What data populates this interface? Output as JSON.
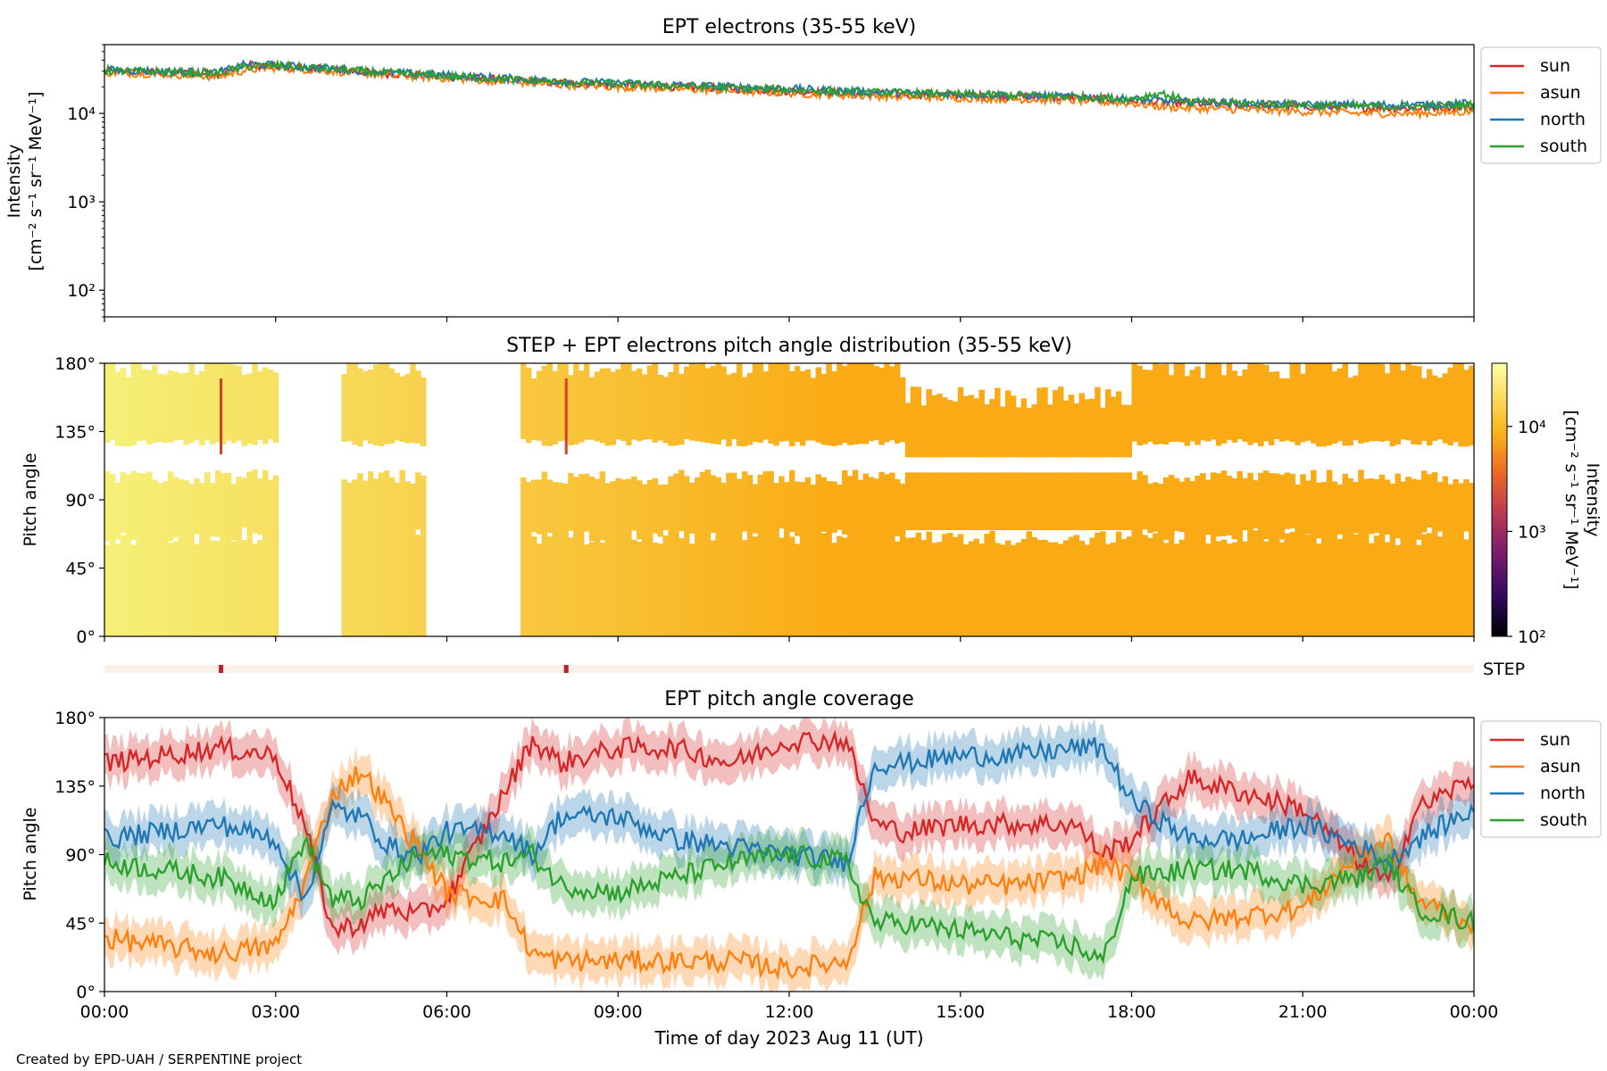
{
  "footer": "Created by EPD-UAH / SERPENTINE project",
  "colors": {
    "sun": "#d62728",
    "asun": "#ff7f0e",
    "north": "#1f77b4",
    "south": "#2ca02c"
  },
  "chart_data": [
    {
      "type": "line",
      "title": "EPT electrons (35-55 keV)",
      "ylabel_lines": [
        "Intensity",
        "[cm⁻² s⁻¹ sr⁻¹ MeV⁻¹]"
      ],
      "yscale": "log",
      "ylim": [
        50,
        60000
      ],
      "yticks": [
        {
          "value": 100,
          "label": "10²"
        },
        {
          "value": 1000,
          "label": "10³"
        },
        {
          "value": 10000,
          "label": "10⁴"
        }
      ],
      "x_hours": [
        0,
        1,
        2,
        2.5,
        3,
        4,
        5,
        6,
        7,
        8,
        9,
        10,
        11,
        12,
        13,
        14,
        15,
        16,
        17,
        18,
        18.5,
        19,
        20,
        21,
        22,
        23,
        24
      ],
      "series": [
        {
          "name": "sun",
          "values": [
            30000,
            29000,
            28000,
            35000,
            34000,
            31000,
            28000,
            26000,
            24000,
            22000,
            21000,
            20000,
            19000,
            18000,
            17000,
            16500,
            16000,
            15500,
            15000,
            14000,
            13500,
            13000,
            12500,
            12000,
            11500,
            11500,
            12000
          ]
        },
        {
          "name": "asun",
          "values": [
            29000,
            28000,
            26000,
            31000,
            33000,
            30000,
            27000,
            25000,
            23000,
            21000,
            20000,
            19000,
            18000,
            17000,
            16000,
            15500,
            15000,
            14500,
            14000,
            13000,
            12000,
            11500,
            11000,
            10500,
            10000,
            10000,
            10500
          ]
        },
        {
          "name": "north",
          "values": [
            31000,
            30000,
            29000,
            36000,
            35000,
            32000,
            29000,
            27000,
            25000,
            23000,
            22000,
            21000,
            20000,
            19000,
            18000,
            17000,
            16500,
            16000,
            15500,
            14500,
            14000,
            13500,
            13000,
            12500,
            12500,
            12500,
            13000
          ]
        },
        {
          "name": "south",
          "values": [
            30500,
            29500,
            28500,
            34000,
            35000,
            31500,
            28500,
            26500,
            24500,
            22500,
            21500,
            20500,
            19500,
            18500,
            17500,
            17000,
            16500,
            16000,
            15500,
            14500,
            17000,
            13500,
            13000,
            12500,
            12000,
            12000,
            12500
          ]
        }
      ],
      "legend": "outside-right"
    },
    {
      "type": "heatmap",
      "title": "STEP + EPT electrons pitch angle distribution (35-55 keV)",
      "ylabel": "Pitch angle",
      "ylim": [
        0,
        180
      ],
      "yticks": [
        "0°",
        "45°",
        "90°",
        "135°",
        "180°"
      ],
      "colorbar": {
        "label_lines": [
          "Intensity",
          "[cm⁻² s⁻¹ sr⁻¹ MeV⁻¹]"
        ],
        "scale": "log",
        "range": [
          100,
          40000
        ],
        "ticks": [
          {
            "value": 100,
            "label": "10²"
          },
          {
            "value": 1000,
            "label": "10³"
          },
          {
            "value": 10000,
            "label": "10⁴"
          }
        ]
      },
      "step_bar_label": "STEP",
      "step_marks_hours": [
        2.05,
        8.1
      ],
      "coverage_hours": [
        [
          0,
          3.0
        ],
        [
          4.2,
          5.6
        ],
        [
          7.3,
          24
        ]
      ]
    },
    {
      "type": "line",
      "title": "EPT pitch angle coverage",
      "ylabel": "Pitch angle",
      "ylim": [
        0,
        180
      ],
      "yticks": [
        "0°",
        "45°",
        "90°",
        "135°",
        "180°"
      ],
      "xlabel": "Time of day 2023 Aug 11 (UT)",
      "xticks": [
        "00:00",
        "03:00",
        "06:00",
        "09:00",
        "12:00",
        "15:00",
        "18:00",
        "21:00",
        "00:00"
      ],
      "x_hours": [
        0,
        1,
        2,
        3,
        3.5,
        4,
        4.5,
        5,
        5.5,
        6,
        7,
        7.5,
        8,
        9,
        10,
        11,
        12,
        13,
        13.5,
        14,
        15,
        16,
        17,
        17.5,
        18,
        19,
        20,
        21,
        22,
        22.5,
        23,
        24
      ],
      "series": [
        {
          "name": "sun",
          "values": [
            150,
            155,
            160,
            155,
            110,
            40,
            45,
            55,
            50,
            60,
            130,
            165,
            150,
            160,
            160,
            150,
            165,
            165,
            110,
            105,
            110,
            110,
            110,
            90,
            100,
            140,
            130,
            120,
            85,
            70,
            120,
            140
          ]
        },
        {
          "name": "asun",
          "values": [
            35,
            30,
            25,
            30,
            70,
            130,
            145,
            120,
            95,
            65,
            60,
            25,
            20,
            20,
            20,
            20,
            15,
            20,
            75,
            75,
            70,
            70,
            75,
            85,
            75,
            45,
            50,
            55,
            90,
            100,
            60,
            45
          ]
        },
        {
          "name": "north",
          "values": [
            100,
            105,
            110,
            100,
            60,
            120,
            115,
            95,
            90,
            105,
            105,
            90,
            115,
            115,
            100,
            95,
            90,
            85,
            150,
            150,
            155,
            155,
            160,
            160,
            125,
            100,
            100,
            110,
            95,
            85,
            100,
            120
          ]
        },
        {
          "name": "south",
          "values": [
            85,
            80,
            75,
            60,
            100,
            60,
            60,
            75,
            90,
            90,
            85,
            90,
            70,
            65,
            75,
            85,
            90,
            85,
            45,
            45,
            40,
            35,
            30,
            20,
            75,
            80,
            80,
            70,
            75,
            85,
            55,
            45
          ]
        }
      ],
      "band_halfwidth_deg": 13,
      "legend": "outside-right"
    }
  ]
}
